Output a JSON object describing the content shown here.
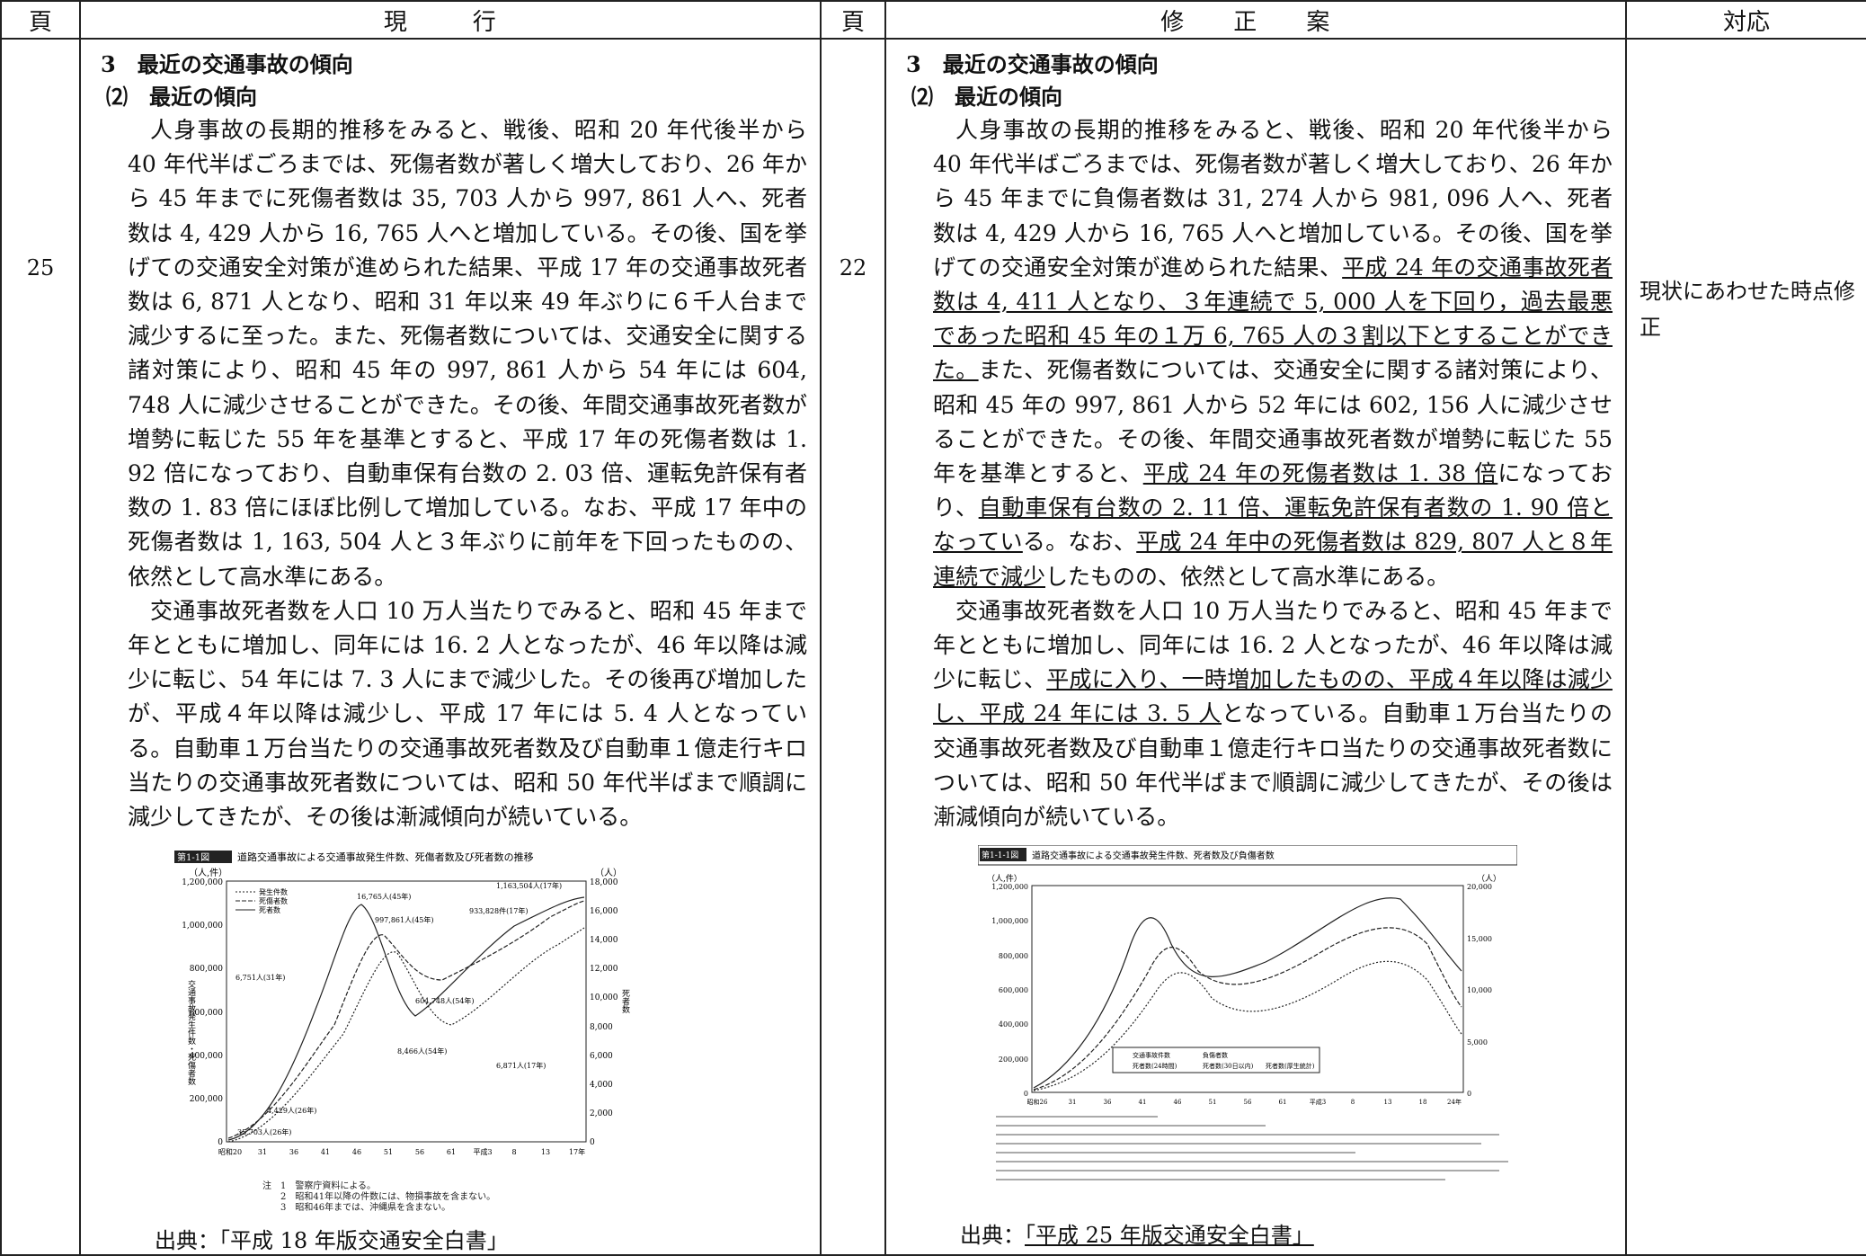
{
  "headers": {
    "page": "頁",
    "current": "現　行",
    "revised": "修 正 案",
    "response": "対応"
  },
  "left": {
    "page_no": "25",
    "section": "3　最近の交通事故の傾向",
    "subsection": "⑵　最近の傾向",
    "para1": "人身事故の長期的推移をみると、戦後、昭和 20 年代後半から 40 年代半ばごろまでは、死傷者数が著しく増大しており、26 年から 45 年までに死傷者数は 35, 703 人から 997, 861 人へ、死者数は 4, 429 人から 16, 765 人へと増加している。その後、国を挙げての交通安全対策が進められた結果、平成 17 年の交通事故死者数は 6, 871 人となり、昭和 31 年以来 49 年ぶりに６千人台まで減少するに至った。また、死傷者数については、交通安全に関する諸対策により、昭和 45 年の 997, 861 人から 54 年には 604, 748 人に減少させることができた。その後、年間交通事故死者数が増勢に転じた 55 年を基準とすると、平成 17 年の死傷者数は 1. 92 倍になっており、自動車保有台数の 2. 03 倍、運転免許保有者数の 1. 83 倍にほぼ比例して増加している。なお、平成 17 年中の死傷者数は 1, 163, 504 人と３年ぶりに前年を下回ったものの、依然として高水準にある。",
    "para2": "交通事故死者数を人口 10 万人当たりでみると、昭和 45 年まで年とともに増加し、同年には 16. 2 人となったが、46 年以降は減少に転じ、54 年には 7. 3 人にまで減少した。その後再び増加したが、平成４年以降は減少し、平成 17 年には 5. 4 人となっている。自動車１万台当たりの交通事故死者数及び自動車１億走行キロ当たりの交通事故死者数については、昭和 50 年代半ばまで順調に減少してきたが、その後は漸減傾向が続いている。",
    "figure": {
      "badge": "第1-1図",
      "title": "道路交通事故による交通事故発生件数、死傷者数及び死者数の推移",
      "unit_left": "（人,件）",
      "unit_right": "（人）",
      "y_left_ticks": [
        "1,200,000",
        "1,000,000",
        "800,000",
        "600,000",
        "400,000",
        "200,000",
        "0"
      ],
      "y_right_ticks": [
        "18,000",
        "16,000",
        "14,000",
        "12,000",
        "10,000",
        "8,000",
        "6,000",
        "4,000",
        "2,000",
        "0"
      ],
      "x_ticks": [
        "昭和20",
        "31",
        "36",
        "41",
        "46",
        "51",
        "56",
        "61",
        "平成3",
        "8",
        "13",
        "17年"
      ],
      "legend": [
        "発生件数",
        "死傷者数",
        "死者数"
      ],
      "y_left_label": "交通事故発生件数・死傷者数",
      "y_right_label": "死者数",
      "annotations": [
        "16,765人(45年)",
        "997,861人(45年)",
        "933,828件(17年)",
        "1,163,504人(17年)",
        "6,751人(31年)",
        "604,748人(54年)",
        "8,466人(54年)",
        "6,871人(17年)",
        "4,429人(26年)",
        "35,703人(26年)"
      ],
      "notes": [
        "注　1　警察庁資料による。",
        "　　2　昭和41年以降の件数には、物損事故を含まない。",
        "　　3　昭和46年までは、沖縄県を含まない。"
      ]
    },
    "source": "出典：「平成 18 年版交通安全白書」"
  },
  "right": {
    "page_no": "22",
    "section": "3　最近の交通事故の傾向",
    "subsection": "⑵　最近の傾向",
    "para1_a": "人身事故の長期的推移をみると、戦後、昭和 20 年代後半から 40 年代半ばごろまでは、死傷者数が著しく増大しており、26 年から 45 年までに負傷者数は 31, 274 人から 981, 096 人へ、死者数は 4, 429 人から 16, 765 人へと増加している。その後、国を挙げての交通安全対策が進められた結果、",
    "para1_u1": "平成 24 年の交通事故死者数は 4, 411 人となり、３年連続で 5, 000 人を下回り，過去最悪であった昭和 45 年の１万 6, 765 人の３割以下とすることができた。",
    "para1_b": "また、死傷者数については、交通安全に関する諸対策により、昭和 45 年の 997, 861 人から 52 年には 602, 156 人に減少させることができた。その後、年間交通事故死者数が増勢に転じた 55 年を基準とすると、",
    "para1_u2": "平成 24 年の死傷者数は 1. 38 倍",
    "para1_c": "になっており、",
    "para1_u3": "自動車保有台数の 2. 11 倍、運転免許保有者数の 1. 90 倍となってい",
    "para1_d": "る。なお、",
    "para1_u4": "平成 24 年中の死傷者数は 829, 807 人と８年連続で減少",
    "para1_e": "したものの、依然として高水準にある。",
    "para2_a": "交通事故死者数を人口 10 万人当たりでみると、昭和 45 年まで年とともに増加し、同年には 16. 2 人となったが、46 年以降は減少に転じ、",
    "para2_u": "平成に入り、一時増加したものの、平成４年以降は減少し、平成 24 年には 3. 5 人",
    "para2_b": "となっている。自動車１万台当たりの交通事故死者数及び自動車１億走行キロ当たりの交通事故死者数については、昭和 50 年代半ばまで順調に減少してきたが、その後は漸減傾向が続いている。",
    "figure": {
      "badge": "第1-1-1図",
      "title": "道路交通事故による交通事故発生件数、死者数及び負傷者数",
      "unit_left": "（人,件）",
      "unit_right": "（人）",
      "y_left_ticks": [
        "1,200,000",
        "1,000,000",
        "800,000",
        "600,000",
        "400,000",
        "200,000",
        "0"
      ],
      "y_right_ticks": [
        "20,000",
        "15,000",
        "10,000",
        "5,000",
        "0"
      ],
      "x_ticks": [
        "昭和26",
        "31",
        "36",
        "41",
        "46",
        "51",
        "56",
        "61",
        "平成3",
        "8",
        "13",
        "18",
        "24年"
      ],
      "legend": [
        "交通事故件数",
        "負傷者数",
        "死者数(24時間)",
        "死者数(30日以内)",
        "死者数(厚生統計)"
      ]
    },
    "source_prefix": "出典：",
    "source_underlined": "「平成 25 年版交通安全白書」"
  },
  "response_text": "現状にあわせた時点修正"
}
